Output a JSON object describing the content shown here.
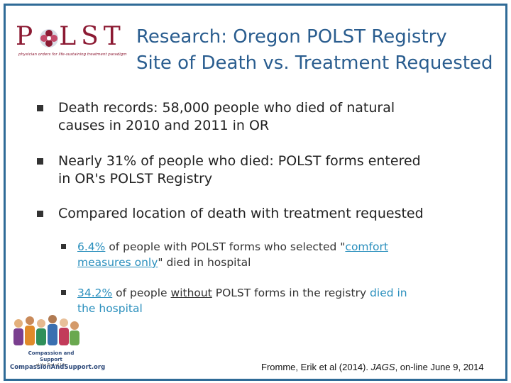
{
  "logo": {
    "wordmark": "POLST",
    "tagline": "physician orders for life-sustaining treatment paradigm"
  },
  "title": {
    "line1": "Research: Oregon POLST Registry",
    "line2": "Site of Death vs. Treatment Requested"
  },
  "bullets": [
    {
      "line1": "Death records: 58,000 people who died of natural",
      "line2": "causes in 2010 and 2011 in OR"
    },
    {
      "line1": "Nearly 31% of people who died: POLST forms entered",
      "line2": "in OR's POLST Registry"
    },
    {
      "line1": "Compared location of death with treatment requested"
    }
  ],
  "sub_bullets": [
    {
      "pct": "6.4%",
      "mid": " of people with POLST forms who selected \"",
      "phrase_a": "comfort",
      "phrase_b": "measures only",
      "tail_a": "\"",
      "tail_b": " died in hospital"
    },
    {
      "pct": "34.2%",
      "mid_a": " of people ",
      "without": "without",
      "mid_b": " POLST forms in the registry ",
      "died_in": "died in",
      "line2": "the hospital"
    }
  ],
  "org": {
    "name": "Compassion and Support",
    "small": "at the End of Life",
    "url": "CompassionAndSupport.org"
  },
  "citation": {
    "authors": "Fromme, Erik et al (2014). ",
    "journal": "JAGS",
    "rest": ", on-line June 9, 2014"
  },
  "colors": {
    "frame": "#2f6b97",
    "title": "#2a5d8f",
    "logo": "#8c1a33",
    "highlight": "#2a8fbd"
  }
}
